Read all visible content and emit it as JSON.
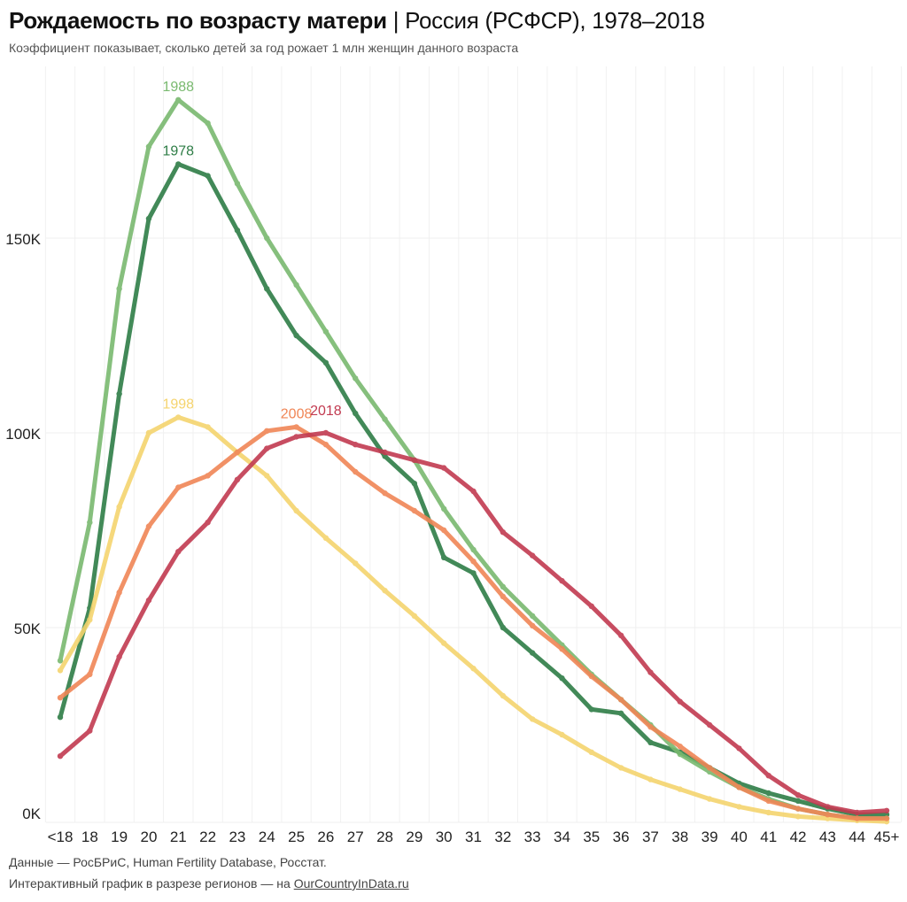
{
  "header": {
    "title_bold": "Рождаемость по возрасту матери",
    "title_sep": " | ",
    "title_rest": "Россия (РСФСР), 1978–2018",
    "subtitle": "Коэффициент показывает, сколько детей за год рожает 1 млн женщин данного возраста"
  },
  "footer": {
    "sources": "Данные — РосБРиС, Human Fertility Database, Росстат.",
    "interactive_prefix": "Интерактивный график в разрезе регионов — на ",
    "link_text": "OurCountryInData.ru"
  },
  "chart_data": {
    "type": "line",
    "title": "Рождаемость по возрасту матери | Россия (РСФСР), 1978–2018",
    "subtitle": "Коэффициент показывает, сколько детей за год рожает 1 млн женщин данного возраста",
    "xlabel": "",
    "ylabel": "",
    "x": [
      "<18",
      "18",
      "19",
      "20",
      "21",
      "22",
      "23",
      "24",
      "25",
      "26",
      "27",
      "28",
      "29",
      "30",
      "31",
      "32",
      "33",
      "34",
      "35",
      "36",
      "37",
      "38",
      "39",
      "40",
      "41",
      "42",
      "43",
      "44",
      "45+"
    ],
    "ylim": [
      0,
      190000
    ],
    "yticks": [
      0,
      50000,
      100000,
      150000
    ],
    "ytick_labels": [
      "0K",
      "50K",
      "100K",
      "150K"
    ],
    "grid": true,
    "legend": "inline-labels",
    "series": [
      {
        "name": "1978",
        "color": "#2e7d46",
        "values": [
          27000,
          55000,
          110000,
          155000,
          169000,
          166000,
          152000,
          137000,
          125000,
          118000,
          105000,
          94000,
          87000,
          68000,
          64000,
          50000,
          43500,
          37000,
          29000,
          28000,
          20500,
          18000,
          14000,
          10000,
          7500,
          5500,
          3500,
          2000,
          2000
        ],
        "label_at": "21"
      },
      {
        "name": "1988",
        "color": "#79b96f",
        "values": [
          41500,
          77000,
          137000,
          173500,
          185500,
          179500,
          164000,
          150000,
          138000,
          126000,
          114000,
          103500,
          93000,
          80500,
          70000,
          60500,
          53000,
          45500,
          38000,
          31500,
          25000,
          17500,
          13000,
          9000,
          6000,
          3500,
          2000,
          1000,
          1000
        ],
        "label_at": "21"
      },
      {
        "name": "1998",
        "color": "#f5d46e",
        "values": [
          39000,
          52000,
          81000,
          100000,
          104000,
          101500,
          95000,
          89000,
          80000,
          73000,
          66500,
          59500,
          53000,
          46000,
          39500,
          32500,
          26500,
          22500,
          18000,
          14000,
          11000,
          8500,
          6000,
          4000,
          2500,
          1500,
          1000,
          500,
          200
        ],
        "label_at": "21"
      },
      {
        "name": "2008",
        "color": "#f08656",
        "values": [
          32000,
          38000,
          59000,
          76000,
          86000,
          89000,
          95000,
          100500,
          101500,
          97000,
          90000,
          84500,
          80000,
          75000,
          67000,
          58000,
          50500,
          44500,
          37500,
          31500,
          24500,
          19500,
          14000,
          9000,
          5500,
          3500,
          2000,
          1000,
          1000
        ],
        "label_at": "25"
      },
      {
        "name": "2018",
        "color": "#c23a50",
        "values": [
          17000,
          23500,
          42500,
          57000,
          69500,
          77000,
          88000,
          96000,
          99000,
          100000,
          97000,
          95000,
          93000,
          91000,
          85000,
          74500,
          68500,
          62000,
          55500,
          48000,
          38500,
          31000,
          25000,
          19000,
          12000,
          7000,
          4000,
          2500,
          3000
        ],
        "label_at": "26"
      }
    ]
  }
}
